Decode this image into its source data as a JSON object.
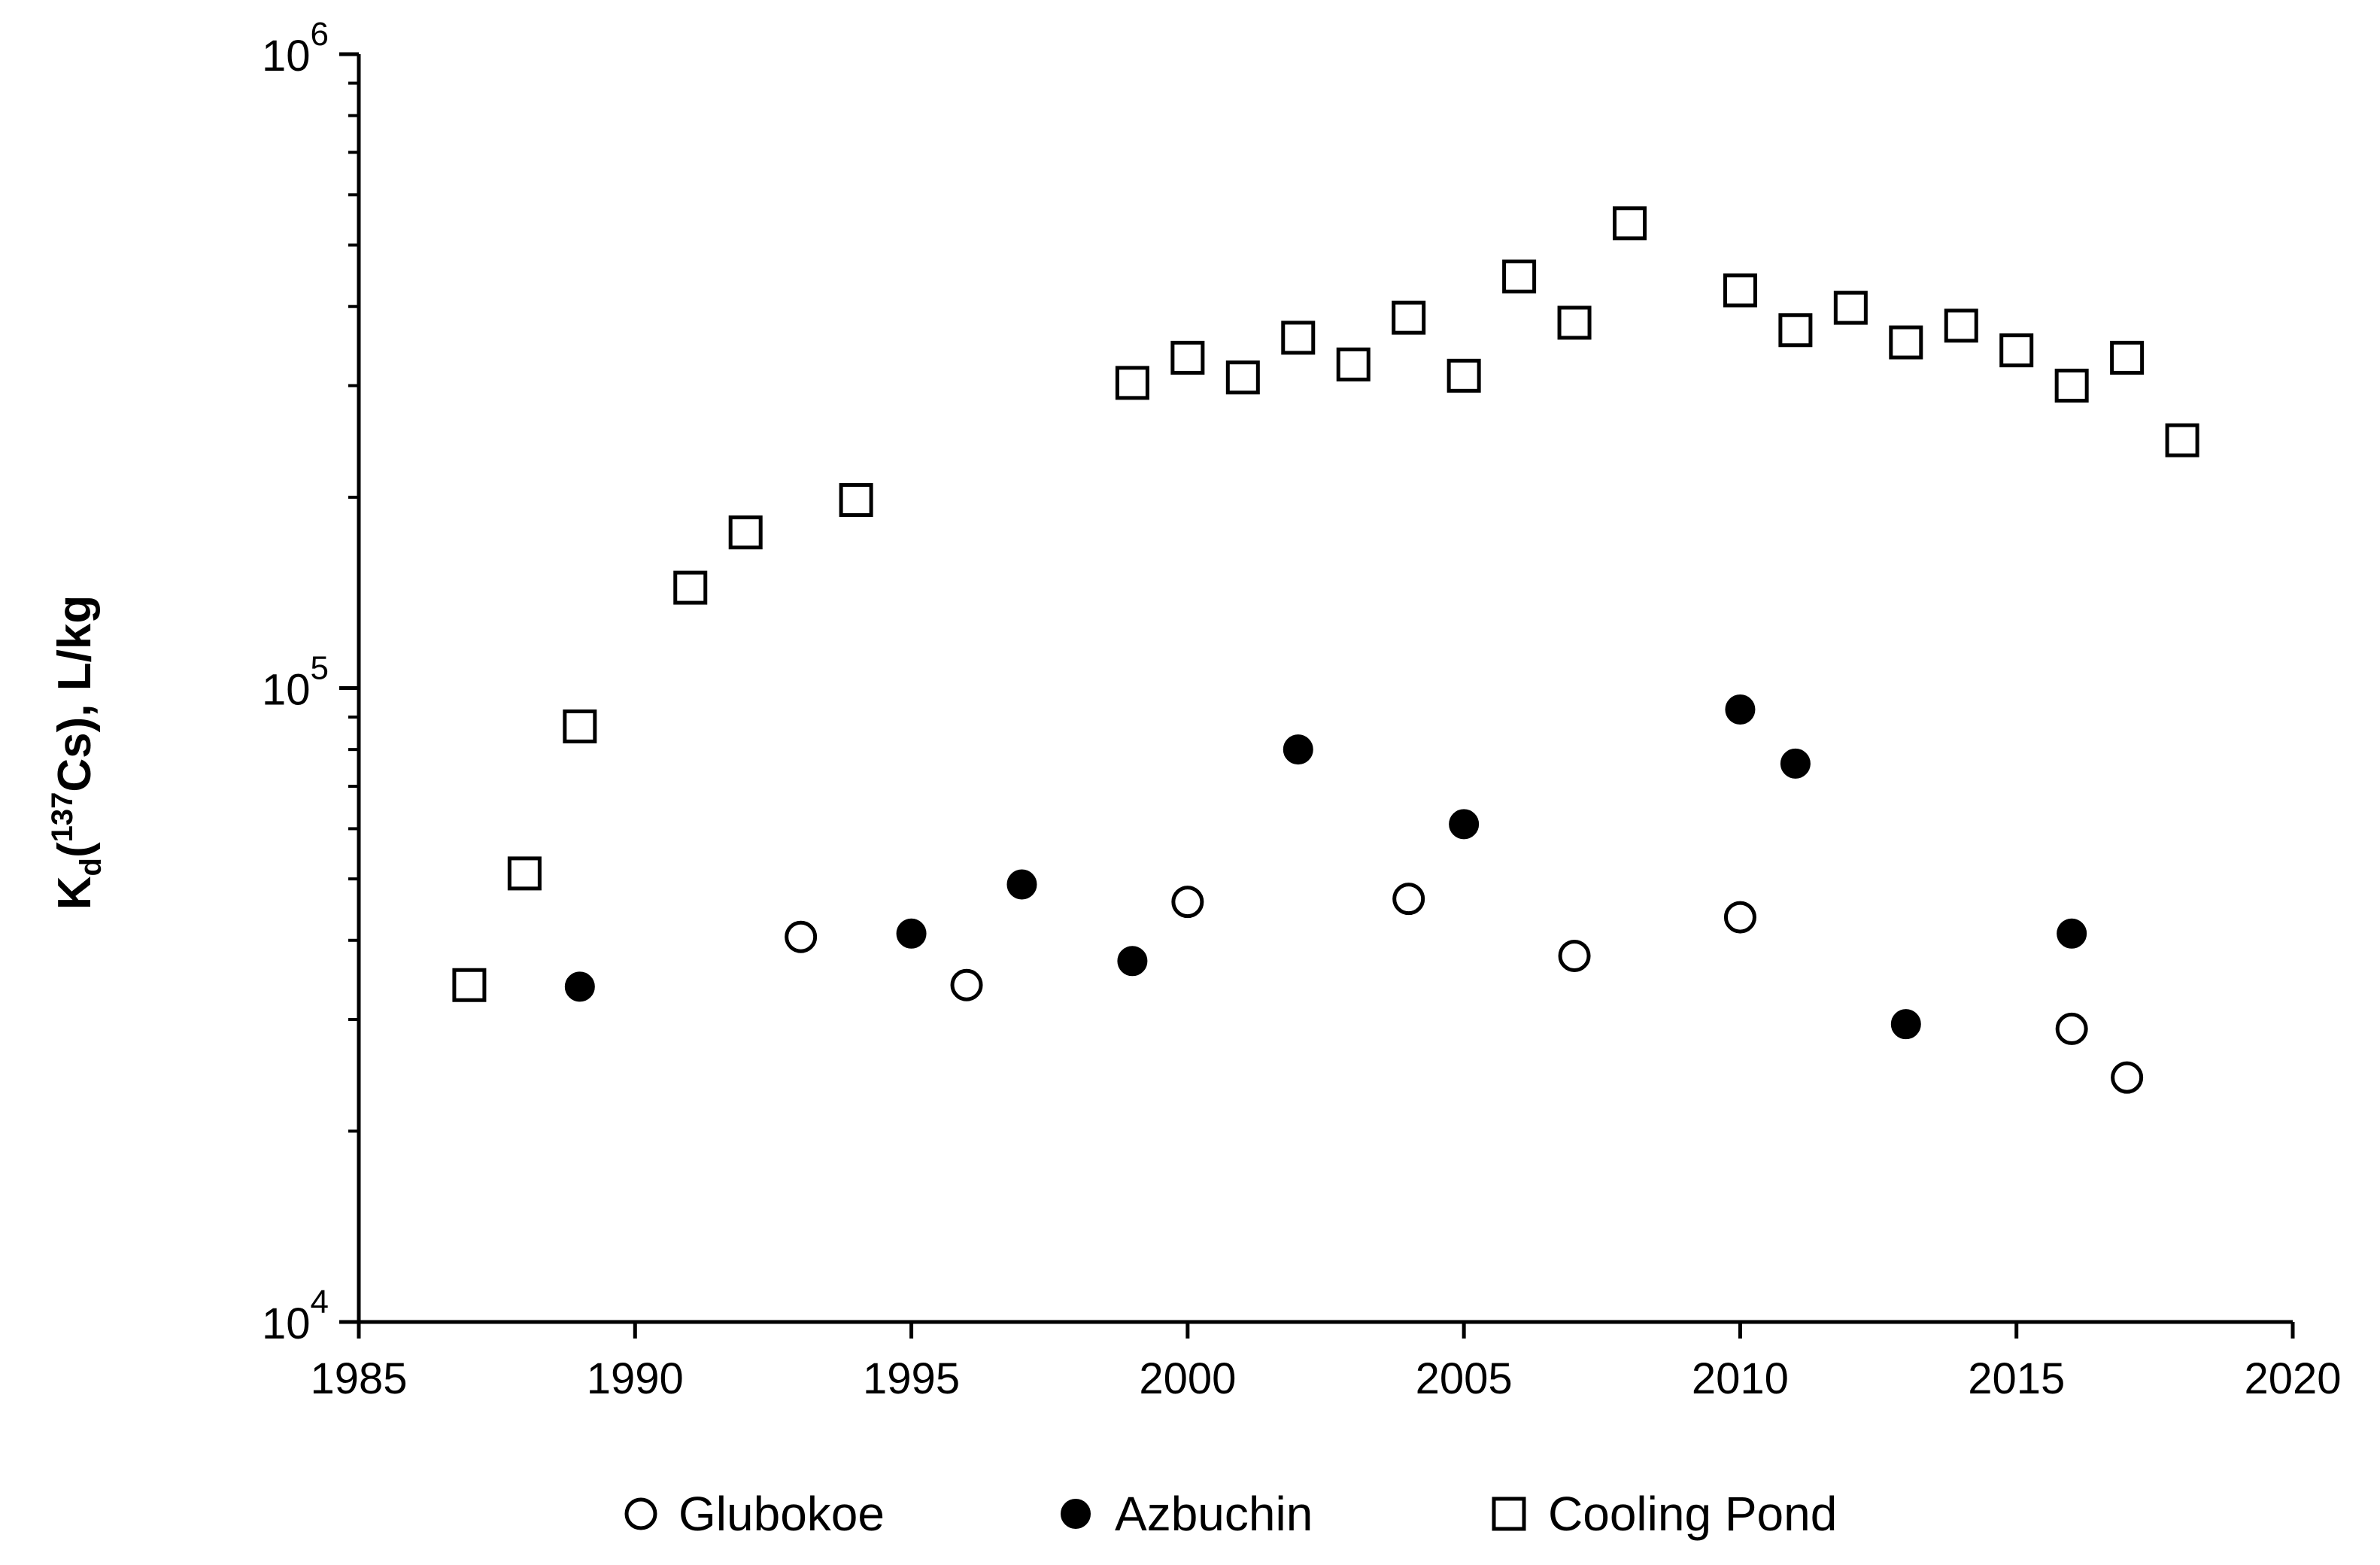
{
  "chart_data": {
    "type": "scatter",
    "ylabel": {
      "prefix": "K",
      "sub": "d",
      "open": "(",
      "sup": "137",
      "middle": "Cs), L/kg"
    },
    "xlim": [
      1985,
      2020
    ],
    "xticks": [
      "1985",
      "1990",
      "1995",
      "2000",
      "2005",
      "2010",
      "2015",
      "2020"
    ],
    "ylim": [
      10000,
      1000000
    ],
    "y_scale": "log",
    "yticks": [
      {
        "base": "10",
        "exp": "4",
        "value": 10000
      },
      {
        "base": "10",
        "exp": "5",
        "value": 100000
      },
      {
        "base": "10",
        "exp": "6",
        "value": 1000000
      }
    ],
    "grid": false,
    "legend_position": "bottom",
    "series": [
      {
        "name": "Glubokoe",
        "marker": "open-circle",
        "color": "#000000",
        "points": [
          {
            "x": 1993,
            "y": 40500
          },
          {
            "x": 1996,
            "y": 34000
          },
          {
            "x": 2000,
            "y": 46000
          },
          {
            "x": 2004,
            "y": 46500
          },
          {
            "x": 2007,
            "y": 37800
          },
          {
            "x": 2010,
            "y": 43500
          },
          {
            "x": 2016,
            "y": 29000
          },
          {
            "x": 2017,
            "y": 24300
          }
        ]
      },
      {
        "name": "Azbuchin",
        "marker": "filled-circle",
        "color": "#000000",
        "points": [
          {
            "x": 1989,
            "y": 33800
          },
          {
            "x": 1995,
            "y": 41000
          },
          {
            "x": 1997,
            "y": 49000
          },
          {
            "x": 1999,
            "y": 37100
          },
          {
            "x": 2002,
            "y": 80000
          },
          {
            "x": 2005,
            "y": 61000
          },
          {
            "x": 2010,
            "y": 92500
          },
          {
            "x": 2011,
            "y": 76000
          },
          {
            "x": 2013,
            "y": 29500
          },
          {
            "x": 2016,
            "y": 41000
          }
        ]
      },
      {
        "name": "Cooling Pond",
        "marker": "open-square",
        "color": "#000000",
        "points": [
          {
            "x": 1987,
            "y": 34000
          },
          {
            "x": 1988,
            "y": 51000
          },
          {
            "x": 1989,
            "y": 87000
          },
          {
            "x": 1991,
            "y": 144000
          },
          {
            "x": 1992,
            "y": 176000
          },
          {
            "x": 1994,
            "y": 198000
          },
          {
            "x": 1999,
            "y": 303000
          },
          {
            "x": 2000,
            "y": 332000
          },
          {
            "x": 2001,
            "y": 309000
          },
          {
            "x": 2002,
            "y": 357000
          },
          {
            "x": 2003,
            "y": 324000
          },
          {
            "x": 2004,
            "y": 384000
          },
          {
            "x": 2005,
            "y": 311000
          },
          {
            "x": 2006,
            "y": 446000
          },
          {
            "x": 2007,
            "y": 377000
          },
          {
            "x": 2008,
            "y": 541000
          },
          {
            "x": 2010,
            "y": 424000
          },
          {
            "x": 2011,
            "y": 367000
          },
          {
            "x": 2012,
            "y": 398000
          },
          {
            "x": 2013,
            "y": 351000
          },
          {
            "x": 2014,
            "y": 373000
          },
          {
            "x": 2015,
            "y": 341000
          },
          {
            "x": 2016,
            "y": 300000
          },
          {
            "x": 2017,
            "y": 332000
          },
          {
            "x": 2018,
            "y": 246000
          }
        ]
      }
    ]
  }
}
